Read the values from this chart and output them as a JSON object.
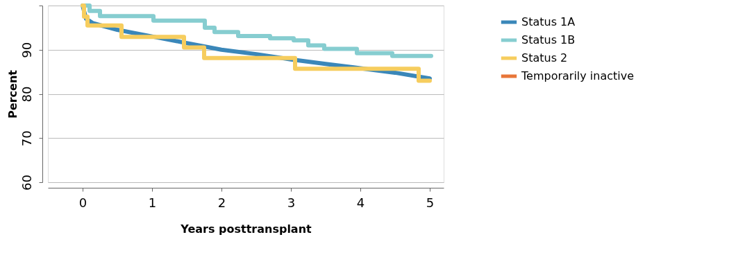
{
  "chart_data": {
    "type": "line",
    "xlabel": "Years posttransplant",
    "ylabel": "Percent",
    "xlim": [
      -0.5,
      5.2
    ],
    "xticks": [
      0,
      1,
      2,
      3,
      4,
      5
    ],
    "ylim": [
      60,
      100
    ],
    "yticks": [
      60,
      70,
      80,
      90,
      {
        "value": 100,
        "label": null
      }
    ],
    "grid": "y",
    "legend": "right",
    "line_style": "solid",
    "marker": "none",
    "series": [
      {
        "name": "Status 1A",
        "color": "#3a87b9",
        "type": "line",
        "x": [
          0,
          0.05,
          0.15,
          0.5,
          1,
          1.5,
          2,
          2.5,
          3,
          3.5,
          4,
          4.5,
          5
        ],
        "values": [
          100,
          97,
          96,
          94.5,
          93,
          91.5,
          90,
          89,
          87.8,
          86.8,
          85.8,
          84.8,
          83.5
        ]
      },
      {
        "name": "Status 1B",
        "color": "#86cdd0",
        "type": "step",
        "x": [
          0,
          0.1,
          0.25,
          1.02,
          1.76,
          1.9,
          2.24,
          2.7,
          3.04,
          3.25,
          3.48,
          3.95,
          4.46,
          5.02
        ],
        "values": [
          100,
          98.8,
          97.6,
          96.6,
          95,
          94,
          93.1,
          92.6,
          92.1,
          91,
          90.2,
          89.2,
          88.6,
          88.6
        ]
      },
      {
        "name": "Status 2",
        "color": "#f6cd5e",
        "type": "step",
        "x": [
          0,
          0.02,
          0.07,
          0.56,
          1.46,
          1.75,
          3.06,
          4.84,
          5.0
        ],
        "values": [
          100,
          97.5,
          95.5,
          92.9,
          90.5,
          88.1,
          85.7,
          83,
          83
        ]
      },
      {
        "name": "Temporarily inactive",
        "color": "#e8763a",
        "type": "line"
      }
    ]
  }
}
